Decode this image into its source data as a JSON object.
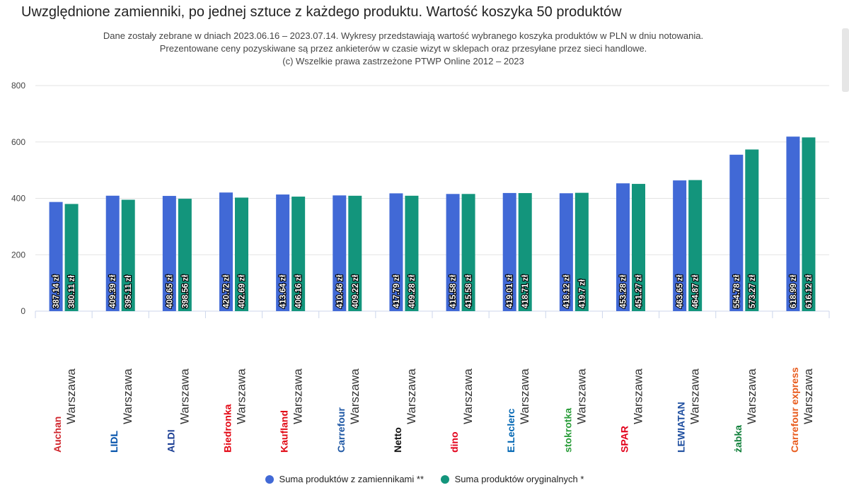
{
  "header": {
    "title": "Uwzględnione zamienniki, po jednej sztuce z każdego produktu. Wartość koszyka 50 produktów",
    "subtitle_lines": [
      "Dane zostały zebrane w dniach 2023.06.16 – 2023.07.14. Wykresy przedstawiają wartość wybranego koszyka produktów w PLN w dniu notowania.",
      "Prezentowane ceny pozyskiwane są przez ankieterów w czasie wizyt w sklepach oraz przesyłane przez sieci handlowe.",
      "(c) Wszelkie prawa zastrzeżone PTWP Online 2012 – 2023"
    ]
  },
  "chart_data": {
    "type": "bar",
    "title": "Uwzględnione zamienniki, po jednej sztuce z każdego produktu. Wartość koszyka 50 produktów",
    "ylim": [
      0,
      800
    ],
    "yticks": [
      0,
      200,
      400,
      600,
      800
    ],
    "grid": true,
    "legend_position": "bottom",
    "categories": [
      "Auchan",
      "Lidl",
      "Aldi",
      "Biedronka",
      "Kaufland",
      "Carrefour",
      "Netto",
      "dino",
      "E.Leclerc",
      "stokrotka",
      "Spar",
      "Lewiatan",
      "żabka",
      "Carrefour express"
    ],
    "city_labels": [
      "Warszawa",
      "Warszawa",
      "Warszawa",
      "Warszawa",
      "Warszawa",
      "Warszawa",
      "Warszawa",
      "Warszawa",
      "Warszawa",
      "Warszawa",
      "Warszawa",
      "Warszawa",
      "Warszawa",
      "Warszawa"
    ],
    "logo_texts": [
      "Auchan",
      "LIDL",
      "ALDI",
      "Biedronka",
      "Kaufland",
      "Carrefour",
      "Netto",
      "dino",
      "E.Leclerc",
      "stokrotka",
      "SPAR",
      "LEWIATAN",
      "żabka",
      "Carrefour express"
    ],
    "series": [
      {
        "name": "Suma produktów z zamiennikami **",
        "color": "#4169d6",
        "values": [
          387.14,
          409.39,
          408.65,
          420.72,
          413.64,
          410.46,
          417.79,
          415.58,
          419.01,
          418.12,
          453.28,
          463.65,
          554.78,
          618.99
        ],
        "labels": [
          "387.14 zł",
          "409.39 zł",
          "408.65 zł",
          "420.72 zł",
          "413.64 zł",
          "410.46 zł",
          "417.79 zł",
          "415.58 zł",
          "419.01 zł",
          "418.12 zł",
          "453.28 zł",
          "463.65 zł",
          "554.78 zł",
          "618.99 zł"
        ]
      },
      {
        "name": "Suma produktów oryginalnych *",
        "color": "#13957c",
        "values": [
          380.11,
          395.11,
          398.56,
          402.69,
          406.16,
          409.22,
          409.28,
          415.58,
          418.71,
          419.7,
          451.27,
          464.87,
          573.27,
          616.12
        ],
        "labels": [
          "380.11 zł",
          "395.11 zł",
          "398.56 zł",
          "402.69 zł",
          "406.16 zł",
          "409.22 zł",
          "409.28 zł",
          "415.58 zł",
          "418.71 zł",
          "419.7 zł",
          "451.27 zł",
          "464.87 zł",
          "573.27 zł",
          "616.12 zł"
        ]
      }
    ]
  }
}
